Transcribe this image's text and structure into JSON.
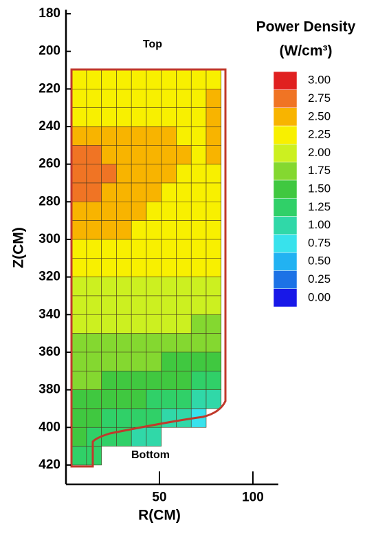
{
  "chart_data": {
    "type": "contour",
    "xlabel": "R(CM)",
    "ylabel": "Z(CM)",
    "xlim": [
      0,
      113
    ],
    "ylim": [
      180,
      430
    ],
    "xticks": [
      50,
      100
    ],
    "yticks": [
      180,
      200,
      220,
      240,
      260,
      280,
      300,
      320,
      340,
      360,
      380,
      400,
      420
    ],
    "annotations": [
      "Top",
      "Bottom"
    ],
    "x": [
      7,
      15,
      23,
      31,
      39,
      47,
      55,
      63,
      71,
      79
    ],
    "y": [
      215,
      225,
      235,
      245,
      255,
      265,
      275,
      285,
      295,
      305,
      315,
      325,
      335,
      345,
      355,
      365,
      375,
      385,
      395,
      405,
      415
    ],
    "z": [
      [
        2.35,
        2.35,
        2.35,
        2.35,
        2.35,
        2.35,
        2.35,
        2.35,
        2.4,
        2.45
      ],
      [
        2.4,
        2.4,
        2.4,
        2.4,
        2.4,
        2.4,
        2.4,
        2.4,
        2.45,
        2.55
      ],
      [
        2.45,
        2.45,
        2.45,
        2.45,
        2.45,
        2.45,
        2.45,
        2.4,
        2.45,
        2.55
      ],
      [
        2.6,
        2.6,
        2.6,
        2.6,
        2.6,
        2.55,
        2.55,
        2.45,
        2.4,
        2.55
      ],
      [
        2.8,
        2.8,
        2.7,
        2.6,
        2.6,
        2.6,
        2.55,
        2.5,
        2.4,
        2.5
      ],
      [
        2.85,
        2.85,
        2.8,
        2.65,
        2.6,
        2.6,
        2.55,
        2.45,
        2.4,
        2.45
      ],
      [
        2.8,
        2.8,
        2.7,
        2.6,
        2.6,
        2.55,
        2.45,
        2.4,
        2.4,
        2.4
      ],
      [
        2.6,
        2.6,
        2.6,
        2.6,
        2.55,
        2.4,
        2.4,
        2.4,
        2.35,
        2.35
      ],
      [
        2.55,
        2.55,
        2.55,
        2.5,
        2.45,
        2.35,
        2.35,
        2.35,
        2.3,
        2.3
      ],
      [
        2.4,
        2.4,
        2.4,
        2.35,
        2.35,
        2.3,
        2.3,
        2.3,
        2.3,
        2.3
      ],
      [
        2.3,
        2.3,
        2.3,
        2.3,
        2.3,
        2.25,
        2.25,
        2.25,
        2.25,
        2.25
      ],
      [
        2.2,
        2.2,
        2.2,
        2.2,
        2.2,
        2.2,
        2.2,
        2.2,
        2.2,
        2.2
      ],
      [
        2.15,
        2.15,
        2.15,
        2.15,
        2.15,
        2.15,
        2.1,
        2.1,
        2.1,
        2.1
      ],
      [
        2.05,
        2.05,
        2.05,
        2.05,
        2.05,
        2.0,
        2.0,
        2.0,
        1.95,
        1.95
      ],
      [
        1.95,
        1.95,
        1.95,
        1.95,
        1.9,
        1.9,
        1.85,
        1.85,
        1.8,
        1.8
      ],
      [
        1.85,
        1.85,
        1.85,
        1.8,
        1.8,
        1.75,
        1.7,
        1.65,
        1.6,
        1.55
      ],
      [
        1.8,
        1.75,
        1.7,
        1.7,
        1.65,
        1.6,
        1.55,
        1.5,
        1.4,
        1.35
      ],
      [
        1.7,
        1.65,
        1.6,
        1.55,
        1.5,
        1.4,
        1.35,
        1.25,
        1.2,
        1.1
      ],
      [
        1.6,
        1.55,
        1.45,
        1.4,
        1.3,
        1.25,
        1.15,
        1.05,
        0.95,
        null
      ],
      [
        1.5,
        1.45,
        1.35,
        1.25,
        1.15,
        1.05,
        null,
        null,
        null,
        null
      ],
      [
        1.4,
        1.35,
        null,
        null,
        null,
        null,
        null,
        null,
        null,
        null
      ]
    ],
    "colorbar": {
      "title": "Power Density",
      "unit": "(W/cm³)",
      "ticks": [
        {
          "value": 0,
          "label": "0.00"
        },
        {
          "value": 0.25,
          "label": "0.25"
        },
        {
          "value": 0.5,
          "label": "0.50"
        },
        {
          "value": 0.75,
          "label": "0.75"
        },
        {
          "value": 1,
          "label": "1.00"
        },
        {
          "value": 1.25,
          "label": "1.25"
        },
        {
          "value": 1.5,
          "label": "1.50"
        },
        {
          "value": 1.75,
          "label": "1.75"
        },
        {
          "value": 2,
          "label": "2.00"
        },
        {
          "value": 2.25,
          "label": "2.25"
        },
        {
          "value": 2.5,
          "label": "2.50"
        },
        {
          "value": 2.75,
          "label": "2.75"
        },
        {
          "value": 3,
          "label": "3.00"
        }
      ],
      "colors": [
        "#1818e8",
        "#1c72e6",
        "#22b2f2",
        "#38e2ec",
        "#30d8a8",
        "#30d068",
        "#40c840",
        "#84d830",
        "#ccf020",
        "#f8f000",
        "#f8b400",
        "#f07424",
        "#e02020"
      ]
    }
  }
}
